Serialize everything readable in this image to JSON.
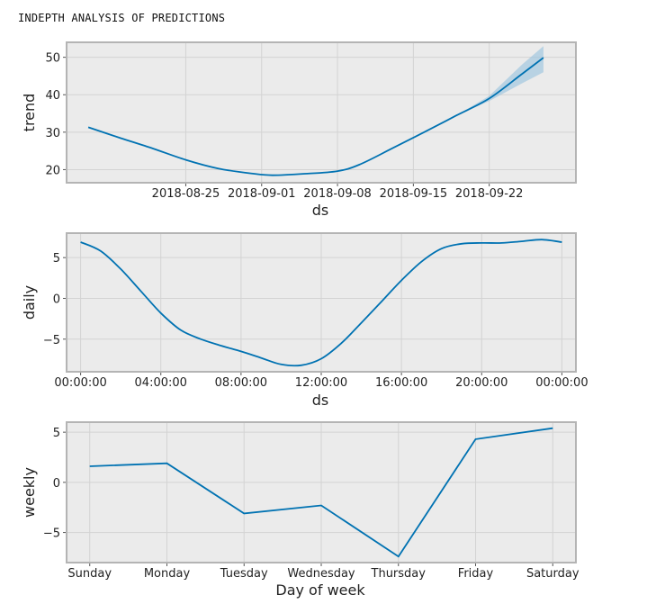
{
  "page": {
    "heading": "INDEPTH ANALYSIS OF PREDICTIONS"
  },
  "colors": {
    "line": "#0072b2",
    "band": "#9cc4de",
    "plot_bg": "#ebebeb",
    "grid": "#d3d3d3",
    "frame": "#b4b4b4"
  },
  "chart_data": [
    {
      "type": "line",
      "panel": "trend",
      "xlabel": "ds",
      "ylabel": "trend",
      "x_is_date": true,
      "xlim": [
        "2018-08-14",
        "2018-09-30"
      ],
      "ylim": [
        16.5,
        54
      ],
      "xticks": [
        "2018-08-25",
        "2018-09-01",
        "2018-09-08",
        "2018-09-15",
        "2018-09-22"
      ],
      "yticks": [
        20,
        30,
        40,
        50
      ],
      "grid": true,
      "series": [
        {
          "x": [
            "2018-08-16",
            "2018-08-19",
            "2018-08-22",
            "2018-08-25",
            "2018-08-28",
            "2018-08-31",
            "2018-09-02",
            "2018-09-05",
            "2018-09-08",
            "2018-09-10",
            "2018-09-13",
            "2018-09-16",
            "2018-09-19",
            "2018-09-22",
            "2018-09-25",
            "2018-09-27"
          ],
          "y": [
            31.3,
            28.4,
            25.6,
            22.6,
            20.3,
            19.0,
            18.5,
            18.9,
            19.6,
            21.3,
            25.6,
            30.0,
            34.5,
            39.0,
            45.5,
            49.9
          ]
        }
      ],
      "uncertainty": {
        "x": [
          "2018-09-19",
          "2018-09-22",
          "2018-09-25",
          "2018-09-27"
        ],
        "lower": [
          34.5,
          38.3,
          43.0,
          46.0
        ],
        "upper": [
          34.5,
          39.7,
          48.0,
          53.0
        ]
      }
    },
    {
      "type": "line",
      "panel": "daily",
      "xlabel": "ds",
      "ylabel": "daily",
      "x_unit": "hours",
      "xlim": [
        -0.7,
        24.7
      ],
      "ylim": [
        -9,
        8
      ],
      "xticks": [
        0,
        4,
        8,
        12,
        16,
        20,
        24
      ],
      "xtick_labels": [
        "00:00:00",
        "04:00:00",
        "08:00:00",
        "12:00:00",
        "16:00:00",
        "20:00:00",
        "00:00:00"
      ],
      "yticks": [
        -5,
        0,
        5
      ],
      "ytick_labels": [
        "−5",
        "0",
        "5"
      ],
      "grid": true,
      "series": [
        {
          "x": [
            0,
            1,
            2,
            3,
            4,
            5,
            6,
            7,
            8,
            9,
            10,
            11,
            12,
            13,
            14,
            15,
            16,
            17,
            18,
            19,
            20,
            21,
            22,
            23,
            24
          ],
          "y": [
            6.9,
            5.8,
            3.6,
            0.9,
            -1.8,
            -3.9,
            -5.0,
            -5.8,
            -6.5,
            -7.3,
            -8.1,
            -8.2,
            -7.4,
            -5.5,
            -3.0,
            -0.4,
            2.2,
            4.5,
            6.1,
            6.7,
            6.8,
            6.8,
            7.0,
            7.2,
            6.9
          ]
        }
      ]
    },
    {
      "type": "line",
      "panel": "weekly",
      "xlabel": "Day of week",
      "ylabel": "weekly",
      "xlim": [
        -0.3,
        6.3
      ],
      "ylim": [
        -8,
        6
      ],
      "categories": [
        "Sunday",
        "Monday",
        "Tuesday",
        "Wednesday",
        "Thursday",
        "Friday",
        "Saturday"
      ],
      "yticks": [
        -5,
        0,
        5
      ],
      "ytick_labels": [
        "−5",
        "0",
        "5"
      ],
      "grid": true,
      "series": [
        {
          "values": [
            1.6,
            1.9,
            -3.1,
            -2.3,
            -7.4,
            4.3,
            5.4
          ]
        }
      ]
    }
  ]
}
